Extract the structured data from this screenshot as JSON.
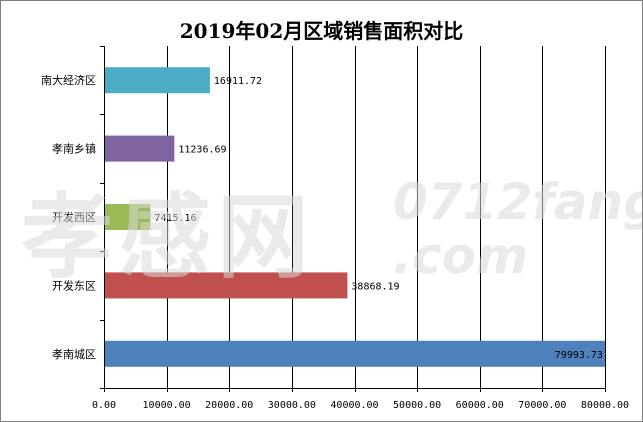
{
  "chart_data": {
    "type": "bar",
    "orientation": "horizontal",
    "title": "2019年02月区域销售面积对比",
    "categories": [
      "南大经济区",
      "孝南乡镇",
      "开发西区",
      "开发东区",
      "孝南城区"
    ],
    "values": [
      16911.72,
      11236.69,
      7415.16,
      38868.19,
      79993.73
    ],
    "value_labels": [
      "16911.72",
      "11236.69",
      "7415.16",
      "38868.19",
      "79993.73"
    ],
    "colors": [
      "#4bacc6",
      "#8064a2",
      "#9bbb59",
      "#c0504d",
      "#4f81bd"
    ],
    "xlim": [
      0,
      80000
    ],
    "x_ticks": [
      0,
      10000,
      20000,
      30000,
      40000,
      50000,
      60000,
      70000,
      80000
    ],
    "x_tick_labels": [
      "0.00",
      "10000.00",
      "20000.00",
      "30000.00",
      "40000.00",
      "50000.00",
      "60000.00",
      "70000.00",
      "80000.00"
    ],
    "grid": "vertical",
    "legend": "none"
  },
  "watermark": {
    "cn": "孝感网",
    "domain_line1": "0712fang",
    "domain_line2": ".com"
  }
}
